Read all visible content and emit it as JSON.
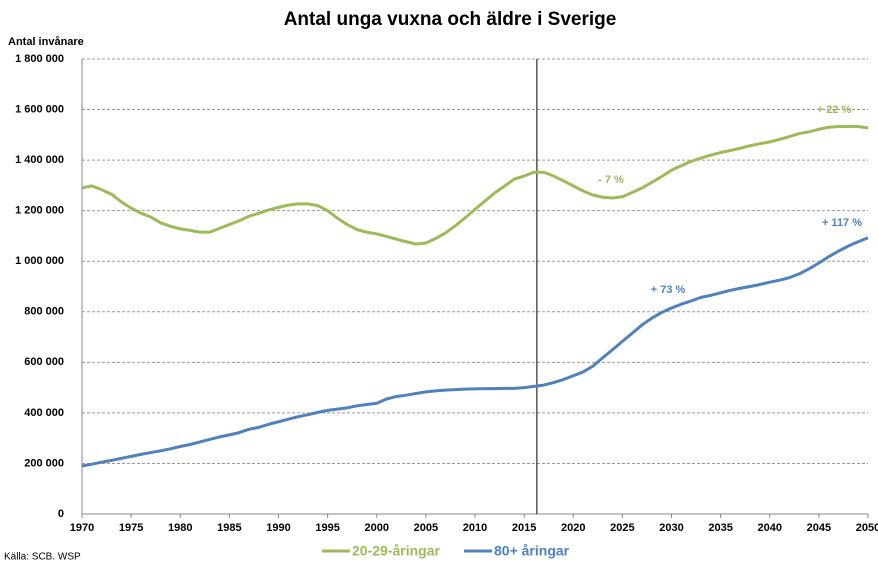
{
  "chart_data": {
    "type": "line",
    "title": "Antal unga vuxna och äldre i Sverige",
    "y_label": "Antal invånare",
    "source": "Källa: SCB. WSP",
    "x": [
      1970,
      1971,
      1972,
      1973,
      1974,
      1975,
      1976,
      1977,
      1978,
      1979,
      1980,
      1981,
      1982,
      1983,
      1984,
      1985,
      1986,
      1987,
      1988,
      1989,
      1990,
      1991,
      1992,
      1993,
      1994,
      1995,
      1996,
      1997,
      1998,
      1999,
      2000,
      2001,
      2002,
      2003,
      2004,
      2005,
      2006,
      2007,
      2008,
      2009,
      2010,
      2011,
      2012,
      2013,
      2014,
      2015,
      2016,
      2017,
      2018,
      2019,
      2020,
      2021,
      2022,
      2023,
      2024,
      2025,
      2026,
      2027,
      2028,
      2029,
      2030,
      2031,
      2032,
      2033,
      2034,
      2035,
      2036,
      2037,
      2038,
      2039,
      2040,
      2041,
      2042,
      2043,
      2044,
      2045,
      2046,
      2047,
      2048,
      2049,
      2050
    ],
    "series": [
      {
        "name": "20-29-åringar",
        "color": "#9bbb59",
        "values": [
          1290000,
          1298000,
          1283000,
          1265000,
          1235000,
          1210000,
          1190000,
          1175000,
          1152000,
          1138000,
          1128000,
          1122000,
          1115000,
          1115000,
          1130000,
          1145000,
          1160000,
          1178000,
          1190000,
          1203000,
          1213000,
          1222000,
          1227000,
          1227000,
          1220000,
          1200000,
          1170000,
          1145000,
          1125000,
          1115000,
          1108000,
          1098000,
          1087000,
          1077000,
          1068000,
          1072000,
          1090000,
          1112000,
          1140000,
          1172000,
          1205000,
          1238000,
          1270000,
          1297000,
          1325000,
          1337000,
          1352000,
          1352000,
          1337000,
          1318000,
          1298000,
          1278000,
          1262000,
          1253000,
          1250000,
          1255000,
          1272000,
          1290000,
          1312000,
          1335000,
          1360000,
          1378000,
          1395000,
          1408000,
          1420000,
          1430000,
          1438000,
          1447000,
          1457000,
          1465000,
          1472000,
          1482000,
          1493000,
          1505000,
          1512000,
          1522000,
          1530000,
          1533000,
          1533000,
          1533000,
          1527000
        ]
      },
      {
        "name": "80+ åringar",
        "color": "#4f81bd",
        "values": [
          190000,
          197000,
          205000,
          212000,
          220000,
          228000,
          236000,
          243000,
          250000,
          258000,
          267000,
          275000,
          285000,
          295000,
          305000,
          313000,
          322000,
          335000,
          343000,
          355000,
          365000,
          375000,
          385000,
          393000,
          402000,
          410000,
          415000,
          420000,
          428000,
          433000,
          438000,
          455000,
          465000,
          470000,
          477000,
          483000,
          487000,
          490000,
          492000,
          494000,
          495000,
          496000,
          496000,
          497000,
          497000,
          500000,
          505000,
          510000,
          520000,
          532000,
          547000,
          562000,
          585000,
          618000,
          650000,
          683000,
          715000,
          748000,
          775000,
          797000,
          815000,
          830000,
          843000,
          857000,
          865000,
          875000,
          885000,
          893000,
          900000,
          908000,
          917000,
          925000,
          935000,
          950000,
          970000,
          993000,
          1018000,
          1040000,
          1060000,
          1077000,
          1093000
        ]
      }
    ],
    "annotations": [
      {
        "text": "+ 22 %",
        "color": "#9bbb59"
      },
      {
        "text": "- 7 %",
        "color": "#9bbb59"
      },
      {
        "text": "+ 73 %",
        "color": "#4f81bd"
      },
      {
        "text": "+ 117 %",
        "color": "#4f81bd"
      }
    ],
    "vline_x": 2016.3,
    "xlim": [
      1970,
      2050
    ],
    "xticks": [
      1970,
      1975,
      1980,
      1985,
      1990,
      1995,
      2000,
      2005,
      2010,
      2015,
      2020,
      2025,
      2030,
      2035,
      2040,
      2045,
      2050
    ],
    "ylim": [
      0,
      1800000
    ],
    "yticks": [
      0,
      {
        "value": 200000,
        "label": "200 000"
      },
      {
        "value": 400000,
        "label": "400 000"
      },
      {
        "value": 600000,
        "label": "600 000"
      },
      {
        "value": 800000,
        "label": "800 000"
      },
      {
        "value": 1000000,
        "label": "1 000 000"
      },
      {
        "value": 1200000,
        "label": "1 200 000"
      },
      {
        "value": 1400000,
        "label": "1 400 000"
      },
      {
        "value": 1600000,
        "label": "1 600 000"
      },
      {
        "value": 1800000,
        "label": "1 800 000"
      }
    ],
    "grid": true
  }
}
